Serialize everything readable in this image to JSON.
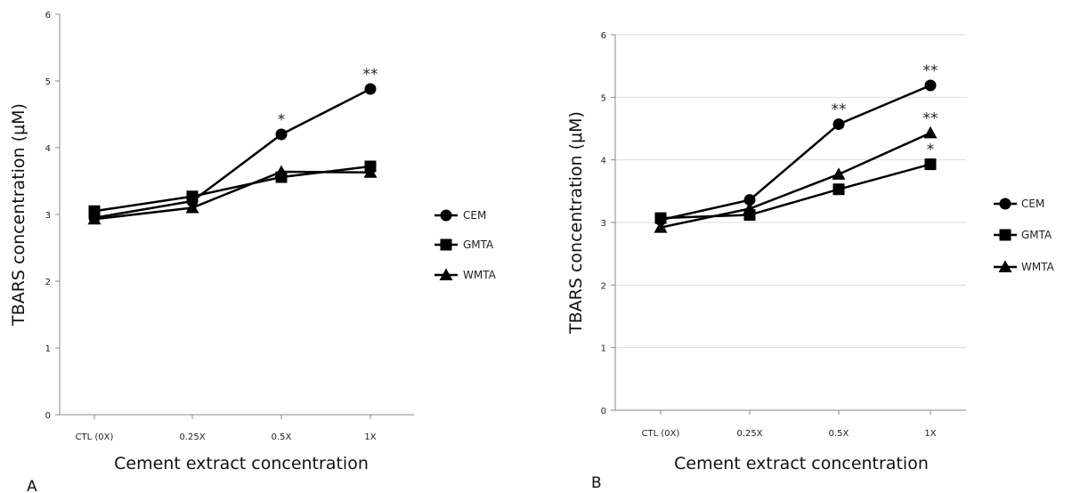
{
  "chart_data": [
    {
      "type": "line",
      "panel_label": "A",
      "categories": [
        "CTL (0X)",
        "0.25X",
        "0.5X",
        "1X"
      ],
      "ylim": [
        0,
        6
      ],
      "yticks": [
        "0",
        "1",
        "2",
        "3",
        "4",
        "5",
        "6"
      ],
      "xlabel": "Cement extract concentration",
      "ylabel": "TBARS concentration (μM)",
      "grid": false,
      "legend_position": "right",
      "series": [
        {
          "name": "CEM",
          "marker": "circle",
          "values": [
            2.95,
            3.2,
            4.2,
            4.88
          ],
          "annotations": [
            "",
            "",
            "*",
            "**"
          ]
        },
        {
          "name": "GMTA",
          "marker": "square",
          "values": [
            3.05,
            3.27,
            3.56,
            3.72
          ],
          "annotations": [
            "",
            "",
            "",
            ""
          ]
        },
        {
          "name": "WMTA",
          "marker": "triangle",
          "values": [
            2.93,
            3.1,
            3.64,
            3.63
          ],
          "annotations": [
            "",
            "",
            "",
            ""
          ]
        }
      ]
    },
    {
      "type": "line",
      "panel_label": "B",
      "categories": [
        "CTL (0X)",
        "0.25X",
        "0.5X",
        "1X"
      ],
      "ylim": [
        0,
        6
      ],
      "yticks": [
        "0",
        "1",
        "2",
        "3",
        "4",
        "5",
        "6"
      ],
      "xlabel": "Cement extract concentration",
      "ylabel": "TBARS concentration (μM)",
      "grid": true,
      "legend_position": "right",
      "series": [
        {
          "name": "CEM",
          "marker": "circle",
          "values": [
            3.04,
            3.36,
            4.57,
            5.19
          ],
          "annotations": [
            "",
            "",
            "**",
            "**"
          ]
        },
        {
          "name": "GMTA",
          "marker": "square",
          "values": [
            3.07,
            3.12,
            3.53,
            3.93
          ],
          "annotations": [
            "",
            "",
            "",
            "*"
          ]
        },
        {
          "name": "WMTA",
          "marker": "triangle",
          "values": [
            2.92,
            3.22,
            3.77,
            4.43
          ],
          "annotations": [
            "",
            "",
            "",
            "**"
          ]
        }
      ]
    }
  ]
}
